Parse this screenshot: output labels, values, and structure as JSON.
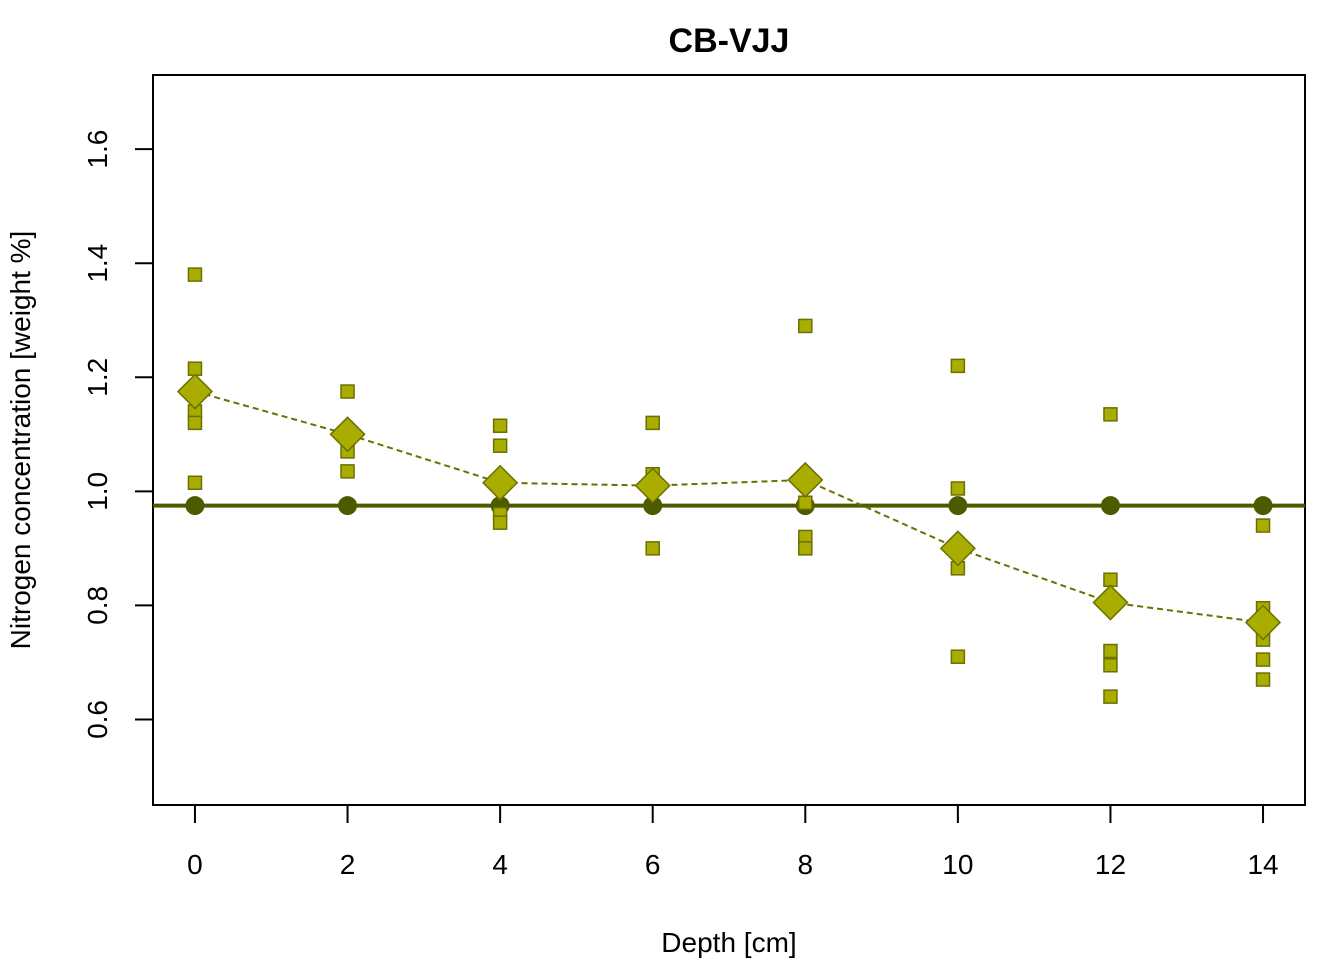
{
  "chart_data": {
    "type": "scatter",
    "title": "CB-VJJ",
    "xlabel": "Depth [cm]",
    "ylabel": "Nitrogen concentration [weight %]",
    "xlim": [
      -0.55,
      14.55
    ],
    "ylim": [
      0.45,
      1.73
    ],
    "xticks": [
      0,
      2,
      4,
      6,
      8,
      10,
      12,
      14
    ],
    "yticks": [
      0.6,
      0.8,
      1.0,
      1.2,
      1.4,
      1.6
    ],
    "ytick_labels": [
      "0.6",
      "0.8",
      "1.0",
      "1.2",
      "1.4",
      "1.6"
    ],
    "grid": false,
    "colors": {
      "samples": "#a8ad00",
      "samples_border": "#6b7000",
      "mean": "#a8ad00",
      "mean_border": "#6b7000",
      "reference": "#4d5a00",
      "reference_point": "#4d5a00"
    },
    "series": [
      {
        "kind": "samples",
        "marker": "square",
        "points": [
          [
            0,
            1.38
          ],
          [
            0,
            1.215
          ],
          [
            0,
            1.14
          ],
          [
            0,
            1.12
          ],
          [
            0,
            1.015
          ],
          [
            2,
            1.175
          ],
          [
            2,
            1.07
          ],
          [
            2,
            1.035
          ],
          [
            4,
            1.115
          ],
          [
            4,
            1.08
          ],
          [
            4,
            0.96
          ],
          [
            4,
            0.945
          ],
          [
            6,
            1.12
          ],
          [
            6,
            1.03
          ],
          [
            6,
            0.9
          ],
          [
            8,
            1.29
          ],
          [
            8,
            0.98
          ],
          [
            8,
            0.92
          ],
          [
            8,
            0.9
          ],
          [
            10,
            1.22
          ],
          [
            10,
            1.005
          ],
          [
            10,
            0.865
          ],
          [
            10,
            0.71
          ],
          [
            12,
            1.135
          ],
          [
            12,
            0.845
          ],
          [
            12,
            0.72
          ],
          [
            12,
            0.695
          ],
          [
            12,
            0.64
          ],
          [
            14,
            0.94
          ],
          [
            14,
            0.795
          ],
          [
            14,
            0.74
          ],
          [
            14,
            0.705
          ],
          [
            14,
            0.67
          ]
        ]
      },
      {
        "kind": "mean",
        "marker": "diamond",
        "line": "dashed",
        "x": [
          0,
          2,
          4,
          6,
          8,
          10,
          12,
          14
        ],
        "y": [
          1.175,
          1.1,
          1.015,
          1.01,
          1.02,
          0.9,
          0.805,
          0.77
        ]
      },
      {
        "kind": "reference",
        "marker": "circle",
        "line": "solid",
        "x": [
          0,
          2,
          4,
          6,
          8,
          10,
          12,
          14
        ],
        "y": [
          0.975,
          0.975,
          0.975,
          0.975,
          0.975,
          0.975,
          0.975,
          0.975
        ],
        "hline": 0.975
      }
    ]
  }
}
